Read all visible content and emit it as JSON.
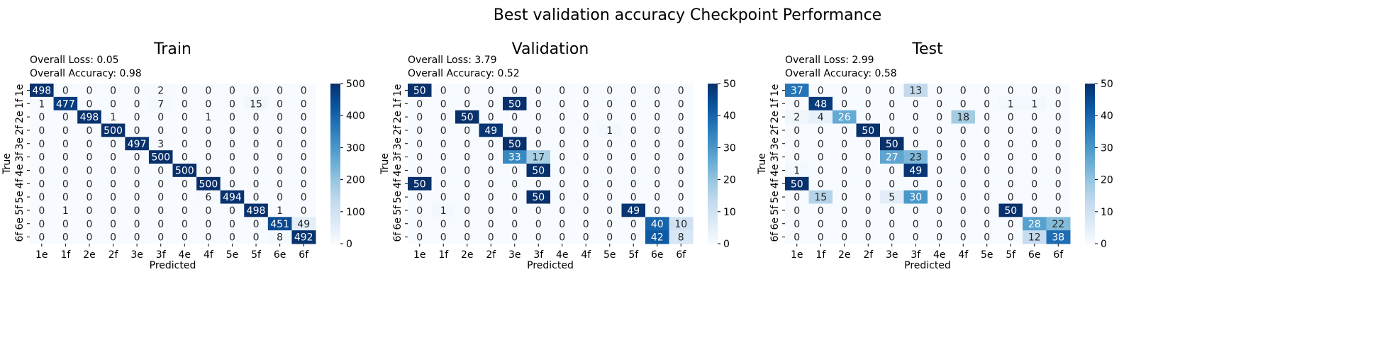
{
  "suptitle": "Best validation accuracy Checkpoint Performance",
  "chart_data": [
    {
      "type": "heatmap",
      "title": "Train",
      "loss_label": "Overall Loss: 0.05",
      "accuracy_label": "Overall Accuracy: 0.98",
      "xlabel": "Predicted",
      "ylabel": "True",
      "x_categories": [
        "1e",
        "1f",
        "2e",
        "2f",
        "3e",
        "3f",
        "4e",
        "4f",
        "5e",
        "5f",
        "6e",
        "6f"
      ],
      "y_categories": [
        "1e",
        "1f",
        "2e",
        "2f",
        "3e",
        "3f",
        "4e",
        "4f",
        "5e",
        "5f",
        "6e",
        "6f"
      ],
      "colorscale": "Blues",
      "vmin": 0,
      "vmax": 500,
      "colorbar_ticks": [
        0,
        100,
        200,
        300,
        400,
        500
      ],
      "matrix": [
        [
          498,
          0,
          0,
          0,
          0,
          2,
          0,
          0,
          0,
          0,
          0,
          0
        ],
        [
          1,
          477,
          0,
          0,
          0,
          7,
          0,
          0,
          0,
          15,
          0,
          0
        ],
        [
          0,
          0,
          498,
          1,
          0,
          0,
          0,
          1,
          0,
          0,
          0,
          0
        ],
        [
          0,
          0,
          0,
          500,
          0,
          0,
          0,
          0,
          0,
          0,
          0,
          0
        ],
        [
          0,
          0,
          0,
          0,
          497,
          3,
          0,
          0,
          0,
          0,
          0,
          0
        ],
        [
          0,
          0,
          0,
          0,
          0,
          500,
          0,
          0,
          0,
          0,
          0,
          0
        ],
        [
          0,
          0,
          0,
          0,
          0,
          0,
          500,
          0,
          0,
          0,
          0,
          0
        ],
        [
          0,
          0,
          0,
          0,
          0,
          0,
          0,
          500,
          0,
          0,
          0,
          0
        ],
        [
          0,
          0,
          0,
          0,
          0,
          0,
          0,
          6,
          494,
          0,
          0,
          0
        ],
        [
          0,
          1,
          0,
          0,
          0,
          0,
          0,
          0,
          0,
          498,
          1,
          0
        ],
        [
          0,
          0,
          0,
          0,
          0,
          0,
          0,
          0,
          0,
          0,
          451,
          49
        ],
        [
          0,
          0,
          0,
          0,
          0,
          0,
          0,
          0,
          0,
          0,
          8,
          492
        ]
      ]
    },
    {
      "type": "heatmap",
      "title": "Validation",
      "loss_label": "Overall Loss: 3.79",
      "accuracy_label": "Overall Accuracy: 0.52",
      "xlabel": "Predicted",
      "ylabel": "True",
      "x_categories": [
        "1e",
        "1f",
        "2e",
        "2f",
        "3e",
        "3f",
        "4e",
        "4f",
        "5e",
        "5f",
        "6e",
        "6f"
      ],
      "y_categories": [
        "1e",
        "1f",
        "2e",
        "2f",
        "3e",
        "3f",
        "4e",
        "4f",
        "5e",
        "5f",
        "6e",
        "6f"
      ],
      "colorscale": "Blues",
      "vmin": 0,
      "vmax": 50,
      "colorbar_ticks": [
        0,
        10,
        20,
        30,
        40,
        50
      ],
      "matrix": [
        [
          50,
          0,
          0,
          0,
          0,
          0,
          0,
          0,
          0,
          0,
          0,
          0
        ],
        [
          0,
          0,
          0,
          0,
          50,
          0,
          0,
          0,
          0,
          0,
          0,
          0
        ],
        [
          0,
          0,
          50,
          0,
          0,
          0,
          0,
          0,
          0,
          0,
          0,
          0
        ],
        [
          0,
          0,
          0,
          49,
          0,
          0,
          0,
          0,
          1,
          0,
          0,
          0
        ],
        [
          0,
          0,
          0,
          0,
          50,
          0,
          0,
          0,
          0,
          0,
          0,
          0
        ],
        [
          0,
          0,
          0,
          0,
          33,
          17,
          0,
          0,
          0,
          0,
          0,
          0
        ],
        [
          0,
          0,
          0,
          0,
          0,
          50,
          0,
          0,
          0,
          0,
          0,
          0
        ],
        [
          50,
          0,
          0,
          0,
          0,
          0,
          0,
          0,
          0,
          0,
          0,
          0
        ],
        [
          0,
          0,
          0,
          0,
          0,
          50,
          0,
          0,
          0,
          0,
          0,
          0
        ],
        [
          0,
          1,
          0,
          0,
          0,
          0,
          0,
          0,
          0,
          49,
          0,
          0
        ],
        [
          0,
          0,
          0,
          0,
          0,
          0,
          0,
          0,
          0,
          0,
          40,
          10
        ],
        [
          0,
          0,
          0,
          0,
          0,
          0,
          0,
          0,
          0,
          0,
          42,
          8
        ]
      ]
    },
    {
      "type": "heatmap",
      "title": "Test",
      "loss_label": "Overall Loss: 2.99",
      "accuracy_label": "Overall Accuracy: 0.58",
      "xlabel": "Predicted",
      "ylabel": "True",
      "x_categories": [
        "1e",
        "1f",
        "2e",
        "2f",
        "3e",
        "3f",
        "4e",
        "4f",
        "5e",
        "5f",
        "6e",
        "6f"
      ],
      "y_categories": [
        "1e",
        "1f",
        "2e",
        "2f",
        "3e",
        "3f",
        "4e",
        "4f",
        "5e",
        "5f",
        "6e",
        "6f"
      ],
      "colorscale": "Blues",
      "vmin": 0,
      "vmax": 50,
      "colorbar_ticks": [
        0,
        10,
        20,
        30,
        40,
        50
      ],
      "matrix": [
        [
          37,
          0,
          0,
          0,
          0,
          13,
          0,
          0,
          0,
          0,
          0,
          0
        ],
        [
          0,
          48,
          0,
          0,
          0,
          0,
          0,
          0,
          0,
          1,
          1,
          0
        ],
        [
          2,
          4,
          26,
          0,
          0,
          0,
          0,
          18,
          0,
          0,
          0,
          0
        ],
        [
          0,
          0,
          0,
          50,
          0,
          0,
          0,
          0,
          0,
          0,
          0,
          0
        ],
        [
          0,
          0,
          0,
          0,
          50,
          0,
          0,
          0,
          0,
          0,
          0,
          0
        ],
        [
          0,
          0,
          0,
          0,
          27,
          23,
          0,
          0,
          0,
          0,
          0,
          0
        ],
        [
          1,
          0,
          0,
          0,
          0,
          49,
          0,
          0,
          0,
          0,
          0,
          0
        ],
        [
          50,
          0,
          0,
          0,
          0,
          0,
          0,
          0,
          0,
          0,
          0,
          0
        ],
        [
          0,
          15,
          0,
          0,
          5,
          30,
          0,
          0,
          0,
          0,
          0,
          0
        ],
        [
          0,
          0,
          0,
          0,
          0,
          0,
          0,
          0,
          0,
          50,
          0,
          0
        ],
        [
          0,
          0,
          0,
          0,
          0,
          0,
          0,
          0,
          0,
          0,
          28,
          22
        ],
        [
          0,
          0,
          0,
          0,
          0,
          0,
          0,
          0,
          0,
          0,
          12,
          38
        ]
      ]
    }
  ]
}
